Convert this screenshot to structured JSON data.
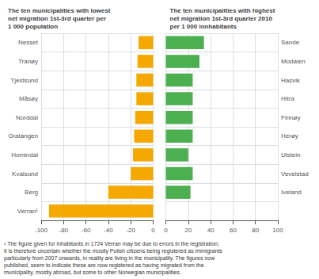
{
  "chart_data": [
    {
      "type": "bar",
      "orientation": "horizontal",
      "title": "The ten municipalities with lowest\nnet migration 1st-3rd quarter per\n1 000 population",
      "categories": [
        "Nesset",
        "Tranøy",
        "Tjeldsund",
        "Måsøy",
        "Norddal",
        "Gratangen",
        "Homindal",
        "Kvalsund",
        "Berg",
        "Verran¹"
      ],
      "values": [
        -13,
        -14,
        -15,
        -15,
        -16,
        -17,
        -18,
        -20,
        -40,
        -93
      ],
      "color": "#F5A800",
      "xlim": [
        -100,
        0
      ],
      "xticks": [
        -100,
        -80,
        -60,
        -40,
        -20,
        0
      ],
      "grid": true,
      "annotations": [
        "¹ The figure given for inhabitants in 1724 Verran may be due to errors in the registration;\nit is therefore uncertain whether the mostly Polish citizens being registered as immigrants\nparticularly from 2007 onwards, in reality are living in the municipality. The figures now\npublished, seem to indicate these are now registered as having migrated from the\nmunicipality, mostly abroad, but some to other Norwegian municipalities."
      ]
    },
    {
      "type": "bar",
      "orientation": "horizontal",
      "title": "The ten municipalities with highest\nnet migration 1st-3rd quarter 2010\nper 1 000 innhabitants",
      "categories": [
        "Sande",
        "Modalen",
        "Hasvik",
        "Hitra",
        "Finnøy",
        "Herøy",
        "Ulstein",
        "Vevelstad",
        "Iveland",
        null
      ],
      "values": [
        34,
        30,
        24,
        24,
        24,
        24,
        20,
        24,
        22,
        0
      ],
      "color": "#4CAF50",
      "xlim": [
        0,
        100
      ],
      "xticks": [
        0,
        20,
        40,
        60,
        80,
        100
      ],
      "grid": true
    }
  ]
}
